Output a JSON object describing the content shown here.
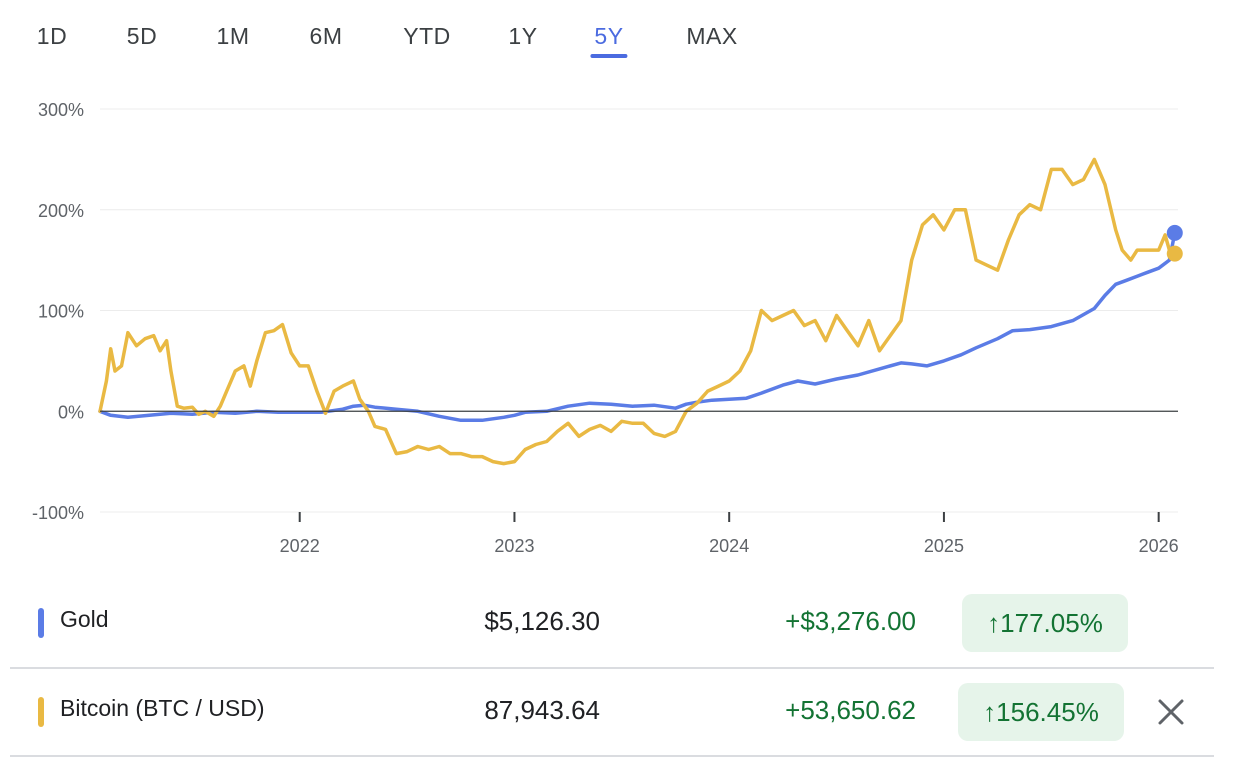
{
  "tabs": [
    {
      "label": "1D"
    },
    {
      "label": "5D"
    },
    {
      "label": "1M"
    },
    {
      "label": "6M"
    },
    {
      "label": "YTD"
    },
    {
      "label": "1Y"
    },
    {
      "label": "5Y",
      "active": true
    },
    {
      "label": "MAX"
    }
  ],
  "colors": {
    "gold": "#5b7ce6",
    "bitcoin": "#e9b943",
    "accent": "#4b6be0",
    "positive": "#137333",
    "positive_bg": "#e6f4ea"
  },
  "chart_data": {
    "type": "line",
    "y_unit": "%",
    "ylim": [
      -100,
      300
    ],
    "y_ticks": [
      "300%",
      "200%",
      "100%",
      "0%",
      "-100%"
    ],
    "y_tick_values": [
      300,
      200,
      100,
      0,
      -100
    ],
    "x_tick_labels": [
      "2022",
      "2023",
      "2024",
      "2025",
      "2026"
    ],
    "x_tick_values": [
      2022.0,
      2023.0,
      2024.0,
      2025.0,
      2026.0
    ],
    "xlim": [
      2021.07,
      2026.09
    ],
    "grid": true,
    "series": [
      {
        "name": "Gold",
        "color": "#5b7ce6",
        "points": [
          [
            2021.07,
            0
          ],
          [
            2021.12,
            -4
          ],
          [
            2021.2,
            -6
          ],
          [
            2021.3,
            -4
          ],
          [
            2021.4,
            -2
          ],
          [
            2021.5,
            -3
          ],
          [
            2021.6,
            -1
          ],
          [
            2021.7,
            -2
          ],
          [
            2021.8,
            0
          ],
          [
            2021.9,
            -1
          ],
          [
            2022.0,
            -1
          ],
          [
            2022.1,
            -1
          ],
          [
            2022.2,
            2
          ],
          [
            2022.25,
            5
          ],
          [
            2022.3,
            6
          ],
          [
            2022.35,
            4
          ],
          [
            2022.45,
            2
          ],
          [
            2022.55,
            0
          ],
          [
            2022.65,
            -5
          ],
          [
            2022.75,
            -9
          ],
          [
            2022.85,
            -9
          ],
          [
            2022.95,
            -6
          ],
          [
            2023.0,
            -4
          ],
          [
            2023.05,
            -1
          ],
          [
            2023.15,
            0
          ],
          [
            2023.25,
            5
          ],
          [
            2023.35,
            8
          ],
          [
            2023.45,
            7
          ],
          [
            2023.55,
            5
          ],
          [
            2023.65,
            6
          ],
          [
            2023.75,
            3
          ],
          [
            2023.8,
            7
          ],
          [
            2023.85,
            9
          ],
          [
            2023.92,
            11
          ],
          [
            2024.0,
            12
          ],
          [
            2024.08,
            13
          ],
          [
            2024.15,
            18
          ],
          [
            2024.25,
            26
          ],
          [
            2024.32,
            30
          ],
          [
            2024.4,
            27
          ],
          [
            2024.5,
            32
          ],
          [
            2024.6,
            36
          ],
          [
            2024.7,
            42
          ],
          [
            2024.8,
            48
          ],
          [
            2024.85,
            47
          ],
          [
            2024.92,
            45
          ],
          [
            2025.0,
            50
          ],
          [
            2025.08,
            56
          ],
          [
            2025.15,
            63
          ],
          [
            2025.25,
            72
          ],
          [
            2025.32,
            80
          ],
          [
            2025.4,
            81
          ],
          [
            2025.5,
            84
          ],
          [
            2025.6,
            90
          ],
          [
            2025.7,
            102
          ],
          [
            2025.75,
            115
          ],
          [
            2025.8,
            126
          ],
          [
            2025.85,
            130
          ],
          [
            2025.9,
            134
          ],
          [
            2025.95,
            138
          ],
          [
            2026.0,
            142
          ],
          [
            2026.05,
            150
          ],
          [
            2026.075,
            177.05
          ]
        ]
      },
      {
        "name": "Bitcoin (BTC / USD)",
        "color": "#e9b943",
        "points": [
          [
            2021.07,
            0
          ],
          [
            2021.1,
            30
          ],
          [
            2021.12,
            62
          ],
          [
            2021.14,
            40
          ],
          [
            2021.17,
            45
          ],
          [
            2021.2,
            78
          ],
          [
            2021.24,
            65
          ],
          [
            2021.28,
            72
          ],
          [
            2021.32,
            75
          ],
          [
            2021.35,
            60
          ],
          [
            2021.38,
            70
          ],
          [
            2021.4,
            40
          ],
          [
            2021.43,
            5
          ],
          [
            2021.46,
            3
          ],
          [
            2021.5,
            4
          ],
          [
            2021.53,
            -3
          ],
          [
            2021.56,
            0
          ],
          [
            2021.6,
            -5
          ],
          [
            2021.63,
            5
          ],
          [
            2021.66,
            20
          ],
          [
            2021.7,
            40
          ],
          [
            2021.74,
            45
          ],
          [
            2021.77,
            25
          ],
          [
            2021.8,
            50
          ],
          [
            2021.84,
            78
          ],
          [
            2021.88,
            80
          ],
          [
            2021.92,
            86
          ],
          [
            2021.96,
            58
          ],
          [
            2022.0,
            45
          ],
          [
            2022.04,
            45
          ],
          [
            2022.08,
            20
          ],
          [
            2022.12,
            -2
          ],
          [
            2022.16,
            20
          ],
          [
            2022.2,
            25
          ],
          [
            2022.25,
            30
          ],
          [
            2022.28,
            12
          ],
          [
            2022.32,
            0
          ],
          [
            2022.35,
            -15
          ],
          [
            2022.4,
            -18
          ],
          [
            2022.45,
            -42
          ],
          [
            2022.5,
            -40
          ],
          [
            2022.55,
            -35
          ],
          [
            2022.6,
            -38
          ],
          [
            2022.65,
            -35
          ],
          [
            2022.7,
            -42
          ],
          [
            2022.75,
            -42
          ],
          [
            2022.8,
            -45
          ],
          [
            2022.85,
            -45
          ],
          [
            2022.9,
            -50
          ],
          [
            2022.95,
            -52
          ],
          [
            2023.0,
            -50
          ],
          [
            2023.05,
            -38
          ],
          [
            2023.1,
            -33
          ],
          [
            2023.15,
            -30
          ],
          [
            2023.2,
            -20
          ],
          [
            2023.25,
            -12
          ],
          [
            2023.3,
            -25
          ],
          [
            2023.35,
            -18
          ],
          [
            2023.4,
            -14
          ],
          [
            2023.45,
            -20
          ],
          [
            2023.5,
            -10
          ],
          [
            2023.55,
            -12
          ],
          [
            2023.6,
            -12
          ],
          [
            2023.65,
            -22
          ],
          [
            2023.7,
            -25
          ],
          [
            2023.75,
            -20
          ],
          [
            2023.8,
            0
          ],
          [
            2023.85,
            8
          ],
          [
            2023.9,
            20
          ],
          [
            2023.95,
            25
          ],
          [
            2024.0,
            30
          ],
          [
            2024.05,
            40
          ],
          [
            2024.1,
            60
          ],
          [
            2024.15,
            100
          ],
          [
            2024.2,
            90
          ],
          [
            2024.25,
            95
          ],
          [
            2024.3,
            100
          ],
          [
            2024.35,
            85
          ],
          [
            2024.4,
            90
          ],
          [
            2024.45,
            70
          ],
          [
            2024.5,
            95
          ],
          [
            2024.55,
            80
          ],
          [
            2024.6,
            65
          ],
          [
            2024.65,
            90
          ],
          [
            2024.7,
            60
          ],
          [
            2024.75,
            75
          ],
          [
            2024.8,
            90
          ],
          [
            2024.85,
            150
          ],
          [
            2024.9,
            185
          ],
          [
            2024.95,
            195
          ],
          [
            2025.0,
            180
          ],
          [
            2025.05,
            200
          ],
          [
            2025.1,
            200
          ],
          [
            2025.15,
            150
          ],
          [
            2025.2,
            145
          ],
          [
            2025.25,
            140
          ],
          [
            2025.3,
            170
          ],
          [
            2025.35,
            195
          ],
          [
            2025.4,
            205
          ],
          [
            2025.45,
            200
          ],
          [
            2025.5,
            240
          ],
          [
            2025.55,
            240
          ],
          [
            2025.6,
            225
          ],
          [
            2025.65,
            230
          ],
          [
            2025.7,
            250
          ],
          [
            2025.75,
            225
          ],
          [
            2025.8,
            180
          ],
          [
            2025.83,
            160
          ],
          [
            2025.87,
            150
          ],
          [
            2025.9,
            160
          ],
          [
            2025.95,
            160
          ],
          [
            2026.0,
            160
          ],
          [
            2026.03,
            175
          ],
          [
            2026.05,
            160
          ],
          [
            2026.075,
            156.45
          ]
        ]
      }
    ]
  },
  "assets": [
    {
      "name": "Gold",
      "price": "$5,126.30",
      "change": "+$3,276.00",
      "percent": "177.05%",
      "arrow": "↑",
      "color": "#5b7ce6",
      "removable": false
    },
    {
      "name": "Bitcoin (BTC / USD)",
      "price": "87,943.64",
      "change": "+53,650.62",
      "percent": "156.45%",
      "arrow": "↑",
      "color": "#e9b943",
      "removable": true
    }
  ]
}
